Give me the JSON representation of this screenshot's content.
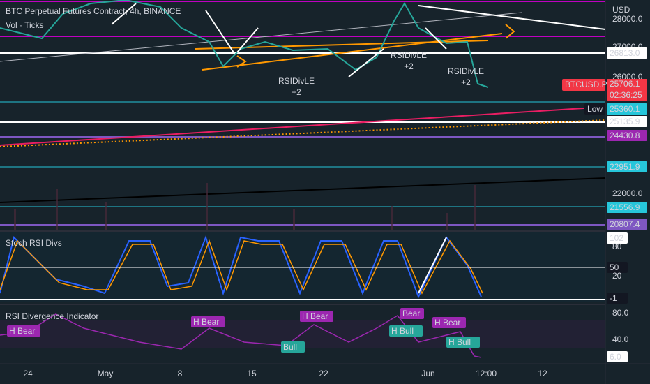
{
  "header": {
    "symbol": "BTC Perpetual Futures Contract, 4h, BINANCE",
    "volume": "Vol · Ticks"
  },
  "price_axis": {
    "currency": "USD",
    "ticks": [
      "28000.0",
      "27000.0",
      "26000.0",
      "22000.0"
    ]
  },
  "price_labels": [
    {
      "text": "26813.0",
      "color": "#ffffff"
    },
    {
      "text": "25360.1",
      "color": "#26c6da"
    },
    {
      "text": "25135.9",
      "color": "#ffffff"
    },
    {
      "text": "24430.8",
      "color": "#9c27b0"
    },
    {
      "text": "22951.9",
      "color": "#26c6da"
    },
    {
      "text": "21556.9",
      "color": "#26c6da"
    },
    {
      "text": "20807.4",
      "color": "#7e57c2"
    }
  ],
  "last_price": {
    "symbol": "BTCUSD.P",
    "price": "25706.1",
    "countdown": "02:36:25"
  },
  "low_label": "Low",
  "annotations": [
    {
      "label": "RSIDivLE",
      "count": "+2"
    },
    {
      "label": "RSIDivLE",
      "count": "+2"
    },
    {
      "label": "RSIDivLE",
      "count": "+2"
    }
  ],
  "stoch": {
    "title": "Stoch RSI Divs",
    "ticks": [
      "102",
      "80",
      "50",
      "20",
      "-1"
    ]
  },
  "rsi": {
    "title": "RSI Divergence Indicator",
    "ticks": [
      "80.0",
      "40.0",
      "6.0"
    ],
    "labels": [
      "H Bear",
      "H Bear",
      "Bull",
      "H Bear",
      "Bear",
      "H Bull",
      "H Bear",
      "H Bull"
    ]
  },
  "time_axis": [
    "24",
    "May",
    "8",
    "15",
    "22",
    "Jun",
    "12:00",
    "12"
  ]
}
